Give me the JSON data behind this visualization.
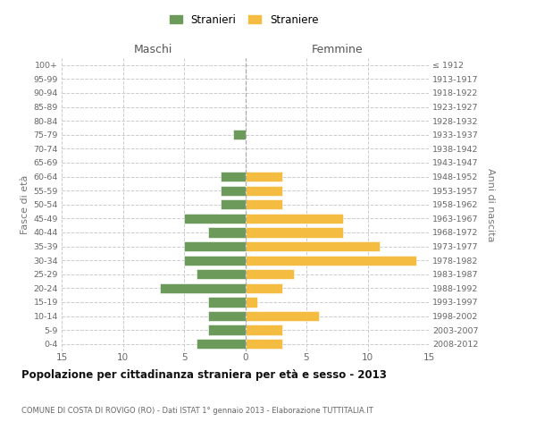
{
  "age_groups": [
    "0-4",
    "5-9",
    "10-14",
    "15-19",
    "20-24",
    "25-29",
    "30-34",
    "35-39",
    "40-44",
    "45-49",
    "50-54",
    "55-59",
    "60-64",
    "65-69",
    "70-74",
    "75-79",
    "80-84",
    "85-89",
    "90-94",
    "95-99",
    "100+"
  ],
  "birth_years": [
    "2008-2012",
    "2003-2007",
    "1998-2002",
    "1993-1997",
    "1988-1992",
    "1983-1987",
    "1978-1982",
    "1973-1977",
    "1968-1972",
    "1963-1967",
    "1958-1962",
    "1953-1957",
    "1948-1952",
    "1943-1947",
    "1938-1942",
    "1933-1937",
    "1928-1932",
    "1923-1927",
    "1918-1922",
    "1913-1917",
    "≤ 1912"
  ],
  "maschi": [
    4,
    3,
    3,
    3,
    7,
    4,
    5,
    5,
    3,
    5,
    2,
    2,
    2,
    0,
    0,
    1,
    0,
    0,
    0,
    0,
    0
  ],
  "femmine": [
    3,
    3,
    6,
    1,
    3,
    4,
    14,
    11,
    8,
    8,
    3,
    3,
    3,
    0,
    0,
    0,
    0,
    0,
    0,
    0,
    0
  ],
  "maschi_color": "#6b9a5b",
  "femmine_color": "#f5bc42",
  "background_color": "#ffffff",
  "grid_color": "#cccccc",
  "title": "Popolazione per cittadinanza straniera per età e sesso - 2013",
  "subtitle": "COMUNE DI COSTA DI ROVIGO (RO) - Dati ISTAT 1° gennaio 2013 - Elaborazione TUTTITALIA.IT",
  "xlabel_left": "Maschi",
  "xlabel_right": "Femmine",
  "ylabel_left": "Fasce di età",
  "ylabel_right": "Anni di nascita",
  "xlim": 15,
  "legend_stranieri": "Stranieri",
  "legend_straniere": "Straniere"
}
